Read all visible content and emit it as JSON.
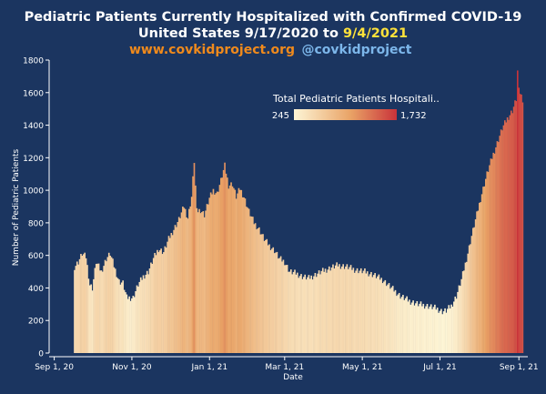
{
  "header": {
    "title_line1": "Pediatric Patients Currently Hospitalized with Confirmed COVID-19",
    "title_line2_prefix": "United States 9/17/2020 to ",
    "title_line2_date": "9/4/2021",
    "website": "www.covkidproject.org",
    "handle": "@covkidproject"
  },
  "colors": {
    "background": "#1b3560",
    "title": "#ffffff",
    "date_highlight": "#ffe23a",
    "website": "#f08a1c",
    "handle": "#7cb6ea",
    "scale_low": "#fdf5d6",
    "scale_mid": "#e9a366",
    "scale_high": "#c9333a"
  },
  "legend": {
    "title": "Total Pediatric Patients Hospitali..",
    "min_label": "245",
    "max_label": "1,732",
    "min": 245,
    "max": 1732,
    "placement": "top-right"
  },
  "chart_data": {
    "type": "bar",
    "title": "Pediatric Patients Currently Hospitalized with Confirmed COVID-19",
    "xlabel": "Date",
    "ylabel": "Number of Pediatric Patients",
    "ylim": [
      0,
      1800
    ],
    "y_ticks": [
      0,
      200,
      400,
      600,
      800,
      1000,
      1200,
      1400,
      1600,
      1800
    ],
    "x_ticks": [
      {
        "label": "Sep 1, 20",
        "date": "2020-09-01"
      },
      {
        "label": "Nov 1, 20",
        "date": "2020-11-01"
      },
      {
        "label": "Jan 1, 21",
        "date": "2021-01-01"
      },
      {
        "label": "Mar 1, 21",
        "date": "2021-03-01"
      },
      {
        "label": "May 1, 21",
        "date": "2021-05-01"
      },
      {
        "label": "Jul 1, 21",
        "date": "2021-07-01"
      },
      {
        "label": "Sep 1, 21",
        "date": "2021-09-01"
      }
    ],
    "x_range": [
      "2020-08-28",
      "2021-09-08"
    ],
    "grid": false,
    "bar_anchor_points": [
      [
        "2020-09-17",
        530
      ],
      [
        "2020-09-20",
        560
      ],
      [
        "2020-09-23",
        610
      ],
      [
        "2020-09-26",
        590
      ],
      [
        "2020-09-29",
        420
      ],
      [
        "2020-10-01",
        400
      ],
      [
        "2020-10-04",
        560
      ],
      [
        "2020-10-08",
        500
      ],
      [
        "2020-10-12",
        580
      ],
      [
        "2020-10-15",
        610
      ],
      [
        "2020-10-19",
        510
      ],
      [
        "2020-10-22",
        440
      ],
      [
        "2020-10-25",
        430
      ],
      [
        "2020-10-28",
        340
      ],
      [
        "2020-11-02",
        340
      ],
      [
        "2020-11-06",
        420
      ],
      [
        "2020-11-10",
        470
      ],
      [
        "2020-11-14",
        500
      ],
      [
        "2020-11-18",
        580
      ],
      [
        "2020-11-22",
        640
      ],
      [
        "2020-11-26",
        620
      ],
      [
        "2020-11-30",
        700
      ],
      [
        "2020-12-04",
        760
      ],
      [
        "2020-12-08",
        820
      ],
      [
        "2020-12-12",
        900
      ],
      [
        "2020-12-15",
        830
      ],
      [
        "2020-12-18",
        960
      ],
      [
        "2020-12-20",
        1180
      ],
      [
        "2020-12-22",
        870
      ],
      [
        "2020-12-25",
        880
      ],
      [
        "2020-12-28",
        850
      ],
      [
        "2021-01-01",
        950
      ],
      [
        "2021-01-04",
        1000
      ],
      [
        "2021-01-07",
        980
      ],
      [
        "2021-01-10",
        1060
      ],
      [
        "2021-01-13",
        1150
      ],
      [
        "2021-01-16",
        1030
      ],
      [
        "2021-01-19",
        1040
      ],
      [
        "2021-01-22",
        960
      ],
      [
        "2021-01-25",
        1010
      ],
      [
        "2021-01-28",
        960
      ],
      [
        "2021-02-01",
        870
      ],
      [
        "2021-02-05",
        800
      ],
      [
        "2021-02-09",
        760
      ],
      [
        "2021-02-13",
        700
      ],
      [
        "2021-02-17",
        660
      ],
      [
        "2021-02-21",
        630
      ],
      [
        "2021-02-25",
        580
      ],
      [
        "2021-03-01",
        560
      ],
      [
        "2021-03-05",
        500
      ],
      [
        "2021-03-10",
        490
      ],
      [
        "2021-03-15",
        470
      ],
      [
        "2021-03-20",
        460
      ],
      [
        "2021-03-25",
        480
      ],
      [
        "2021-03-30",
        500
      ],
      [
        "2021-04-05",
        520
      ],
      [
        "2021-04-12",
        540
      ],
      [
        "2021-04-19",
        530
      ],
      [
        "2021-04-26",
        510
      ],
      [
        "2021-05-03",
        500
      ],
      [
        "2021-05-10",
        480
      ],
      [
        "2021-05-17",
        450
      ],
      [
        "2021-05-24",
        400
      ],
      [
        "2021-05-31",
        350
      ],
      [
        "2021-06-07",
        320
      ],
      [
        "2021-06-14",
        300
      ],
      [
        "2021-06-21",
        290
      ],
      [
        "2021-06-28",
        275
      ],
      [
        "2021-07-03",
        255
      ],
      [
        "2021-07-06",
        260
      ],
      [
        "2021-07-10",
        290
      ],
      [
        "2021-07-14",
        350
      ],
      [
        "2021-07-18",
        450
      ],
      [
        "2021-07-22",
        580
      ],
      [
        "2021-07-26",
        720
      ],
      [
        "2021-07-30",
        850
      ],
      [
        "2021-08-03",
        980
      ],
      [
        "2021-08-07",
        1100
      ],
      [
        "2021-08-11",
        1200
      ],
      [
        "2021-08-15",
        1290
      ],
      [
        "2021-08-19",
        1380
      ],
      [
        "2021-08-23",
        1440
      ],
      [
        "2021-08-27",
        1490
      ],
      [
        "2021-08-30",
        1560
      ],
      [
        "2021-08-31",
        1732
      ],
      [
        "2021-09-01",
        1610
      ],
      [
        "2021-09-02",
        1600
      ],
      [
        "2021-09-04",
        1560
      ]
    ]
  }
}
